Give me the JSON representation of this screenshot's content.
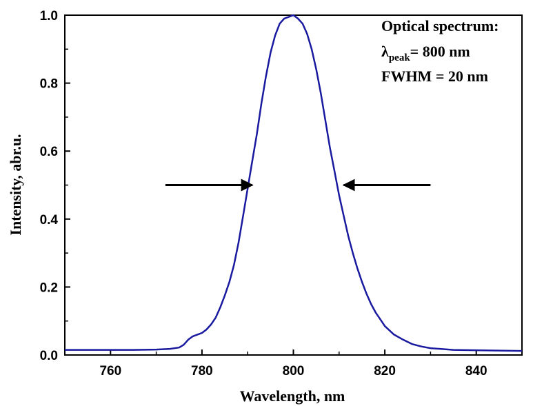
{
  "chart_data": {
    "type": "line",
    "xlabel": "Wavelength, nm",
    "ylabel": "Intensity, abr.u.",
    "xlim": [
      750,
      850
    ],
    "ylim": [
      0.0,
      1.0
    ],
    "xticks": [
      760,
      780,
      800,
      820,
      840
    ],
    "yticks": [
      0.0,
      0.2,
      0.4,
      0.6,
      0.8,
      1.0
    ],
    "x_tick_labels": [
      "760",
      "780",
      "800",
      "820",
      "840"
    ],
    "y_tick_labels": [
      "0.0",
      "0.2",
      "0.4",
      "0.6",
      "0.8",
      "1.0"
    ],
    "grid": false,
    "series": [
      {
        "color": "#1a1aa0",
        "x": [
          750,
          755,
          760,
          765,
          770,
          773,
          775,
          776,
          777,
          778,
          779,
          780,
          781,
          782,
          783,
          784,
          785,
          786,
          787,
          788,
          789,
          790,
          791,
          792,
          793,
          794,
          795,
          796,
          797,
          798,
          799,
          800,
          801,
          802,
          803,
          804,
          805,
          806,
          807,
          808,
          809,
          810,
          811,
          812,
          813,
          814,
          815,
          816,
          817,
          818,
          819,
          820,
          822,
          824,
          826,
          828,
          830,
          835,
          840,
          845,
          850
        ],
        "y": [
          0.015,
          0.015,
          0.015,
          0.015,
          0.016,
          0.018,
          0.022,
          0.03,
          0.045,
          0.055,
          0.06,
          0.065,
          0.075,
          0.09,
          0.11,
          0.14,
          0.175,
          0.215,
          0.265,
          0.33,
          0.41,
          0.49,
          0.57,
          0.65,
          0.74,
          0.82,
          0.89,
          0.94,
          0.975,
          0.99,
          0.995,
          1.0,
          0.99,
          0.975,
          0.945,
          0.9,
          0.84,
          0.77,
          0.69,
          0.61,
          0.54,
          0.47,
          0.41,
          0.35,
          0.3,
          0.255,
          0.215,
          0.18,
          0.15,
          0.125,
          0.105,
          0.085,
          0.06,
          0.045,
          0.032,
          0.025,
          0.02,
          0.015,
          0.014,
          0.013,
          0.012
        ]
      }
    ],
    "annotations": {
      "title": "Optical spectrum:",
      "lambda_symbol": "λ",
      "lambda_sub": "peak",
      "lambda_value": "= 800 nm",
      "fwhm": "FWHM = 20 nm"
    },
    "fwhm_arrows": {
      "y": 0.5,
      "left": {
        "x_from": 772,
        "x_to": 791
      },
      "right": {
        "x_from": 830,
        "x_to": 811
      }
    }
  }
}
